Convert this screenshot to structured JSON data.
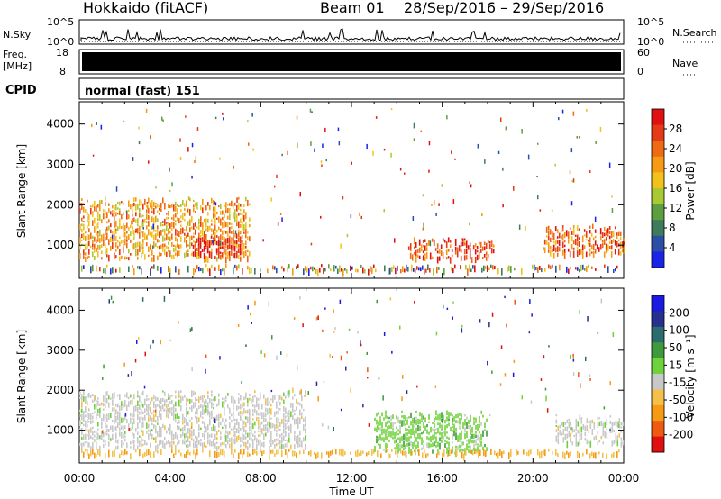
{
  "header": {
    "title": "Hokkaido (fitACF)",
    "beam": "Beam 01",
    "date_range": "28/Sep/2016 – 29/Sep/2016"
  },
  "strip_labels": {
    "nsky": "N.Sky",
    "nsky_top": "10^5",
    "nsky_bottom": "10^0",
    "nsearch": "N.Search",
    "nsearch_top": "10^5",
    "nsearch_bottom": "10^0",
    "freq_line1": "Freq.",
    "freq_line2": "[MHz]",
    "freq_top": "18",
    "freq_bottom": "8",
    "nave_top": "60",
    "nave_bottom": "0",
    "nave": "Nave",
    "cpid": "CPID",
    "cpid_value": "normal (fast) 151"
  },
  "axes": {
    "ylabel": "Slant Range [km]",
    "xlabel": "Time UT",
    "yticks": [
      "1000",
      "2000",
      "3000",
      "4000"
    ],
    "xticks": [
      "00:00",
      "04:00",
      "08:00",
      "12:00",
      "16:00",
      "20:00",
      "00:00"
    ]
  },
  "chart_data": [
    {
      "type": "heatmap",
      "title": "Power [dB]",
      "xlabel": "Time UT",
      "ylabel": "Slant Range [km]",
      "xlim": [
        0,
        24
      ],
      "ylim": [
        180,
        4550
      ],
      "colorbar": {
        "label": "Power [dB]",
        "ticks": [
          4,
          8,
          12,
          16,
          20,
          24,
          28
        ],
        "colors": [
          "#1a24e8",
          "#2b4fa6",
          "#3d7b5c",
          "#5d9f40",
          "#a8c934",
          "#f2c21a",
          "#f59a12",
          "#ef6a12",
          "#e53a18",
          "#e01010"
        ]
      },
      "regions": [
        {
          "t0": 0,
          "t1": 7.5,
          "r0": 700,
          "r1": 2200,
          "value": 20
        },
        {
          "t0": 5,
          "t1": 7.2,
          "r0": 800,
          "r1": 1300,
          "value": 28
        },
        {
          "t0": 14.5,
          "t1": 18.3,
          "r0": 700,
          "r1": 1200,
          "value": 26
        },
        {
          "t0": 20.5,
          "t1": 24,
          "r0": 800,
          "r1": 1500,
          "value": 22
        }
      ]
    },
    {
      "type": "heatmap",
      "title": "Velocity [m s^-1]",
      "xlabel": "Time UT",
      "ylabel": "Slant Range [km]",
      "xlim": [
        0,
        24
      ],
      "ylim": [
        180,
        4550
      ],
      "colorbar": {
        "label": "Velocity [m s⁻¹]",
        "ticks": [
          -200,
          -100,
          -50,
          -15,
          15,
          50,
          100,
          200
        ],
        "colors": [
          "#e01010",
          "#ef5a12",
          "#f59a12",
          "#f4c04a",
          "#c8c8c8",
          "#6fd23a",
          "#3d9a3d",
          "#2a6c70",
          "#26308f",
          "#1a1ae0"
        ]
      },
      "regions": [
        {
          "t0": 0,
          "t1": 10,
          "r0": 600,
          "r1": 2000,
          "value": 0
        },
        {
          "t0": 13,
          "t1": 18,
          "r0": 500,
          "r1": 1500,
          "value": 20
        },
        {
          "t0": 21,
          "t1": 24,
          "r0": 700,
          "r1": 1400,
          "value": 0
        }
      ]
    }
  ]
}
